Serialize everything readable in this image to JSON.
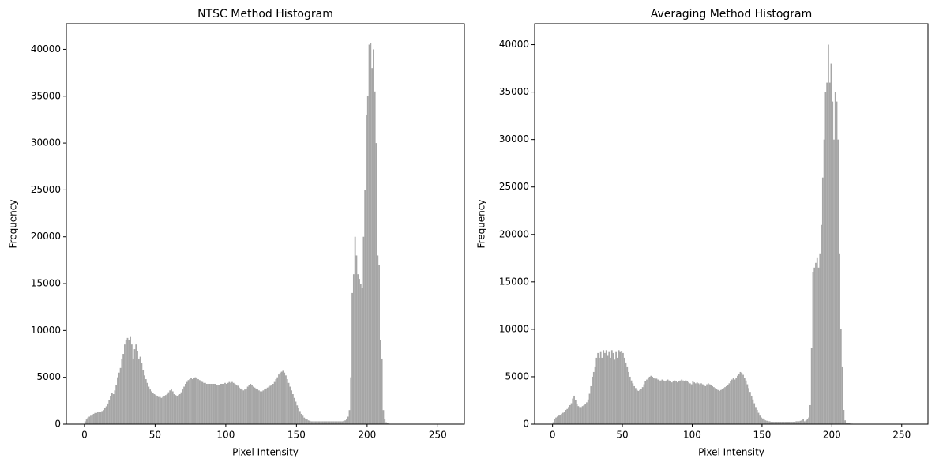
{
  "chart_data": [
    {
      "type": "histogram",
      "title": "NTSC Method Histogram",
      "x_label": "Pixel Intensity",
      "y_label": "Frequency",
      "color": "#a6a6a6",
      "bins": [
        0,
        1,
        2,
        3,
        4,
        5,
        6,
        7,
        8,
        9,
        10,
        11,
        12,
        13,
        14,
        15,
        16,
        17,
        18,
        19,
        20,
        21,
        22,
        23,
        24,
        25,
        26,
        27,
        28,
        29,
        30,
        31,
        32,
        33,
        34,
        35,
        36,
        37,
        38,
        39,
        40,
        41,
        42,
        43,
        44,
        45,
        46,
        47,
        48,
        49,
        50,
        51,
        52,
        53,
        54,
        55,
        56,
        57,
        58,
        59,
        60,
        61,
        62,
        63,
        64,
        65,
        66,
        67,
        68,
        69,
        70,
        71,
        72,
        73,
        74,
        75,
        76,
        77,
        78,
        79,
        80,
        81,
        82,
        83,
        84,
        85,
        86,
        87,
        88,
        89,
        90,
        91,
        92,
        93,
        94,
        95,
        96,
        97,
        98,
        99,
        100,
        101,
        102,
        103,
        104,
        105,
        106,
        107,
        108,
        109,
        110,
        111,
        112,
        113,
        114,
        115,
        116,
        117,
        118,
        119,
        120,
        121,
        122,
        123,
        124,
        125,
        126,
        127,
        128,
        129,
        130,
        131,
        132,
        133,
        134,
        135,
        136,
        137,
        138,
        139,
        140,
        141,
        142,
        143,
        144,
        145,
        146,
        147,
        148,
        149,
        150,
        151,
        152,
        153,
        154,
        155,
        156,
        157,
        158,
        159,
        160,
        161,
        162,
        163,
        164,
        165,
        166,
        167,
        168,
        169,
        170,
        171,
        172,
        173,
        174,
        175,
        176,
        177,
        178,
        179,
        180,
        181,
        182,
        183,
        184,
        185,
        186,
        187,
        188,
        189,
        190,
        191,
        192,
        193,
        194,
        195,
        196,
        197,
        198,
        199,
        200,
        201,
        202,
        203,
        204,
        205,
        206,
        207,
        208,
        209,
        210,
        211,
        212,
        213,
        214,
        215,
        216,
        217,
        218,
        219,
        220,
        221,
        222,
        223,
        224,
        225,
        226,
        227,
        228,
        229,
        230,
        231,
        232,
        233,
        234,
        235,
        236,
        237,
        238,
        239,
        240,
        241,
        242,
        243,
        244,
        245,
        246,
        247,
        248,
        249,
        250,
        251,
        252,
        253,
        254,
        255,
        256
      ],
      "values": [
        300,
        500,
        700,
        800,
        900,
        1000,
        1100,
        1200,
        1200,
        1300,
        1300,
        1300,
        1400,
        1500,
        1700,
        1900,
        2200,
        2600,
        3000,
        3300,
        3200,
        3600,
        4200,
        5000,
        5500,
        6000,
        7000,
        7500,
        8500,
        9000,
        9200,
        9000,
        9300,
        8500,
        7000,
        8000,
        8500,
        7800,
        7000,
        7200,
        6500,
        5800,
        5200,
        4800,
        4400,
        4000,
        3700,
        3500,
        3300,
        3200,
        3100,
        3000,
        2900,
        2900,
        2800,
        2900,
        3000,
        3100,
        3200,
        3400,
        3600,
        3700,
        3500,
        3200,
        3100,
        3000,
        3100,
        3200,
        3400,
        3700,
        4000,
        4300,
        4500,
        4700,
        4800,
        4900,
        4800,
        4900,
        5000,
        4900,
        4800,
        4700,
        4600,
        4500,
        4400,
        4400,
        4300,
        4300,
        4300,
        4300,
        4300,
        4300,
        4300,
        4200,
        4200,
        4200,
        4300,
        4300,
        4300,
        4400,
        4300,
        4400,
        4500,
        4400,
        4500,
        4400,
        4300,
        4200,
        4100,
        3900,
        3800,
        3700,
        3600,
        3700,
        3800,
        4000,
        4200,
        4300,
        4200,
        4000,
        3900,
        3800,
        3700,
        3600,
        3500,
        3500,
        3600,
        3700,
        3800,
        3900,
        4000,
        4100,
        4200,
        4300,
        4500,
        4800,
        5000,
        5300,
        5500,
        5600,
        5700,
        5500,
        5200,
        4800,
        4400,
        4000,
        3600,
        3200,
        2800,
        2400,
        2000,
        1700,
        1400,
        1100,
        900,
        700,
        600,
        500,
        400,
        350,
        300,
        300,
        300,
        300,
        300,
        300,
        300,
        300,
        300,
        300,
        300,
        300,
        300,
        300,
        300,
        300,
        300,
        300,
        300,
        300,
        300,
        300,
        300,
        350,
        400,
        500,
        800,
        1500,
        5000,
        14000,
        16000,
        20000,
        18000,
        16000,
        15500,
        15000,
        14500,
        20000,
        25000,
        33000,
        35000,
        40500,
        40700,
        38000,
        40000,
        35500,
        30000,
        18000,
        17000,
        9000,
        7000,
        1500,
        500,
        200,
        100,
        50,
        40,
        40,
        30,
        30,
        30,
        20,
        20,
        20,
        20,
        20,
        20,
        20,
        20,
        20,
        20,
        20,
        20,
        20,
        20,
        20,
        20,
        20,
        20,
        20,
        20,
        20,
        20,
        20,
        20,
        20,
        20,
        20,
        20,
        20,
        20,
        20,
        20,
        20,
        20,
        20
      ],
      "xlim": [
        -12.8,
        268.8
      ],
      "xticks": [
        0,
        50,
        100,
        150,
        200,
        250
      ],
      "ylim": [
        0,
        42735
      ],
      "yticks": [
        0,
        5000,
        10000,
        15000,
        20000,
        25000,
        30000,
        35000,
        40000
      ]
    },
    {
      "type": "histogram",
      "title": "Averaging Method Histogram",
      "x_label": "Pixel Intensity",
      "y_label": "Frequency",
      "color": "#a6a6a6",
      "bins": [
        0,
        1,
        2,
        3,
        4,
        5,
        6,
        7,
        8,
        9,
        10,
        11,
        12,
        13,
        14,
        15,
        16,
        17,
        18,
        19,
        20,
        21,
        22,
        23,
        24,
        25,
        26,
        27,
        28,
        29,
        30,
        31,
        32,
        33,
        34,
        35,
        36,
        37,
        38,
        39,
        40,
        41,
        42,
        43,
        44,
        45,
        46,
        47,
        48,
        49,
        50,
        51,
        52,
        53,
        54,
        55,
        56,
        57,
        58,
        59,
        60,
        61,
        62,
        63,
        64,
        65,
        66,
        67,
        68,
        69,
        70,
        71,
        72,
        73,
        74,
        75,
        76,
        77,
        78,
        79,
        80,
        81,
        82,
        83,
        84,
        85,
        86,
        87,
        88,
        89,
        90,
        91,
        92,
        93,
        94,
        95,
        96,
        97,
        98,
        99,
        100,
        101,
        102,
        103,
        104,
        105,
        106,
        107,
        108,
        109,
        110,
        111,
        112,
        113,
        114,
        115,
        116,
        117,
        118,
        119,
        120,
        121,
        122,
        123,
        124,
        125,
        126,
        127,
        128,
        129,
        130,
        131,
        132,
        133,
        134,
        135,
        136,
        137,
        138,
        139,
        140,
        141,
        142,
        143,
        144,
        145,
        146,
        147,
        148,
        149,
        150,
        151,
        152,
        153,
        154,
        155,
        156,
        157,
        158,
        159,
        160,
        161,
        162,
        163,
        164,
        165,
        166,
        167,
        168,
        169,
        170,
        171,
        172,
        173,
        174,
        175,
        176,
        177,
        178,
        179,
        180,
        181,
        182,
        183,
        184,
        185,
        186,
        187,
        188,
        189,
        190,
        191,
        192,
        193,
        194,
        195,
        196,
        197,
        198,
        199,
        200,
        201,
        202,
        203,
        204,
        205,
        206,
        207,
        208,
        209,
        210,
        211,
        212,
        213,
        214,
        215,
        216,
        217,
        218,
        219,
        220,
        221,
        222,
        223,
        224,
        225,
        226,
        227,
        228,
        229,
        230,
        231,
        232,
        233,
        234,
        235,
        236,
        237,
        238,
        239,
        240,
        241,
        242,
        243,
        244,
        245,
        246,
        247,
        248,
        249,
        250,
        251,
        252,
        253,
        254,
        255,
        256
      ],
      "values": [
        200,
        500,
        700,
        800,
        900,
        1000,
        1100,
        1200,
        1300,
        1500,
        1600,
        1800,
        2000,
        2200,
        2700,
        3000,
        2500,
        2100,
        1900,
        1800,
        1800,
        1900,
        2000,
        2100,
        2300,
        2600,
        3200,
        4000,
        5000,
        5500,
        6000,
        7000,
        7500,
        7000,
        7600,
        7000,
        7800,
        7500,
        7800,
        7200,
        7600,
        7000,
        7800,
        7500,
        6800,
        7600,
        7000,
        7800,
        7600,
        7700,
        7500,
        7000,
        6500,
        6000,
        5500,
        5000,
        4600,
        4300,
        4000,
        3800,
        3600,
        3500,
        3600,
        3700,
        3900,
        4200,
        4500,
        4700,
        4900,
        5000,
        5100,
        5000,
        4900,
        4800,
        4800,
        4700,
        4600,
        4600,
        4700,
        4600,
        4500,
        4600,
        4700,
        4600,
        4500,
        4400,
        4500,
        4600,
        4500,
        4400,
        4500,
        4600,
        4700,
        4600,
        4500,
        4600,
        4500,
        4400,
        4300,
        4200,
        4500,
        4400,
        4300,
        4400,
        4300,
        4200,
        4300,
        4200,
        4100,
        4000,
        4200,
        4300,
        4200,
        4100,
        4000,
        3900,
        3800,
        3700,
        3600,
        3500,
        3600,
        3700,
        3800,
        3900,
        4000,
        4100,
        4300,
        4500,
        4700,
        4900,
        4700,
        4900,
        5100,
        5300,
        5500,
        5400,
        5200,
        4900,
        4600,
        4200,
        3800,
        3400,
        3000,
        2600,
        2200,
        1800,
        1500,
        1200,
        900,
        700,
        600,
        500,
        400,
        350,
        300,
        300,
        250,
        250,
        250,
        250,
        250,
        250,
        250,
        250,
        250,
        250,
        250,
        250,
        250,
        250,
        250,
        250,
        250,
        250,
        300,
        300,
        300,
        350,
        400,
        500,
        300,
        400,
        500,
        700,
        2000,
        8000,
        16000,
        16500,
        17000,
        17500,
        16500,
        18000,
        21000,
        26000,
        30000,
        35000,
        36000,
        40000,
        36000,
        38000,
        34000,
        30000,
        35000,
        34000,
        30000,
        18000,
        10000,
        6000,
        1500,
        400,
        150,
        100,
        80,
        60,
        50,
        40,
        40,
        30,
        30,
        30,
        20,
        20,
        20,
        20,
        20,
        20,
        20,
        20,
        20,
        20,
        20,
        20,
        20,
        20,
        20,
        20,
        20,
        20,
        20,
        20,
        20,
        20,
        20,
        20,
        20,
        20,
        20,
        20,
        20,
        20,
        20,
        20,
        20,
        20,
        20,
        20
      ],
      "xlim": [
        -12.8,
        268.8
      ],
      "xticks": [
        0,
        50,
        100,
        150,
        200,
        250
      ],
      "ylim": [
        0,
        42210
      ],
      "yticks": [
        0,
        5000,
        10000,
        15000,
        20000,
        25000,
        30000,
        35000,
        40000
      ]
    }
  ]
}
